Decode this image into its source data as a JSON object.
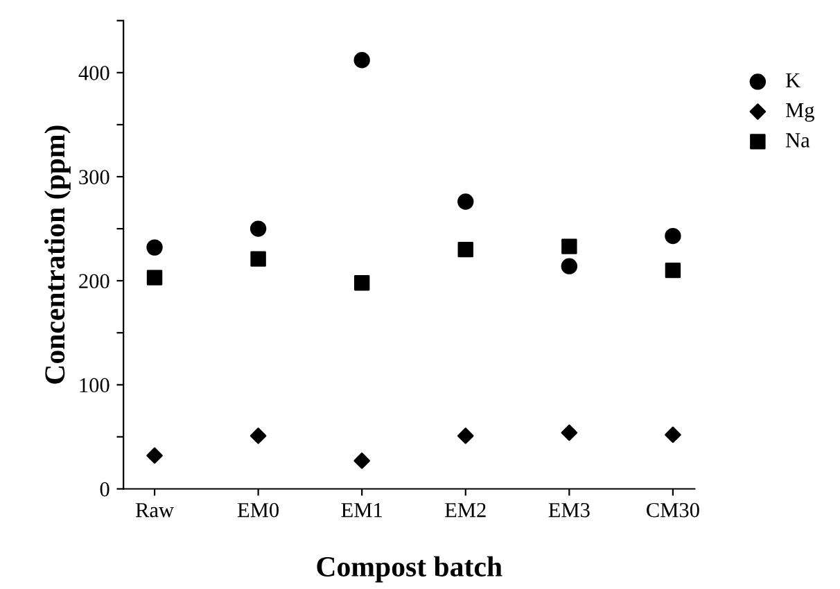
{
  "chart_data": {
    "type": "scatter",
    "xlabel": "Compost batch",
    "ylabel": "Concentration (ppm)",
    "categories": [
      "Raw",
      "EM0",
      "EM1",
      "EM2",
      "EM3",
      "CM30"
    ],
    "series": [
      {
        "name": "K",
        "color": "#000000",
        "marker": "circle",
        "values": [
          232,
          250,
          412,
          276,
          214,
          243
        ]
      },
      {
        "name": "Mg",
        "color": "#000000",
        "marker": "diamond",
        "values": [
          32,
          51,
          27,
          51,
          54,
          52
        ]
      },
      {
        "name": "Na",
        "color": "#000000",
        "marker": "square",
        "values": [
          203,
          221,
          198,
          230,
          233,
          210
        ]
      }
    ],
    "ylim": [
      0,
      450
    ],
    "yticks": [
      0,
      {
        "value": 50,
        "label": null
      },
      100,
      {
        "value": 150,
        "label": null
      },
      200,
      {
        "value": 250,
        "label": null
      },
      300,
      {
        "value": 350,
        "label": null
      },
      400,
      {
        "value": 450,
        "label": null
      }
    ],
    "grid": false,
    "legend": "top right"
  }
}
